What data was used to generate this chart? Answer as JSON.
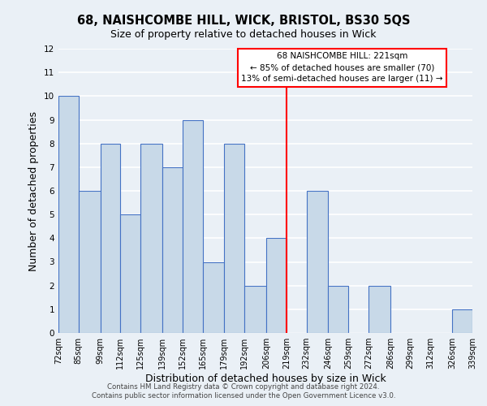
{
  "title": "68, NAISHCOMBE HILL, WICK, BRISTOL, BS30 5QS",
  "subtitle": "Size of property relative to detached houses in Wick",
  "xlabel": "Distribution of detached houses by size in Wick",
  "ylabel": "Number of detached properties",
  "bar_left_edges": [
    72,
    85,
    99,
    112,
    125,
    139,
    152,
    165,
    179,
    192,
    206,
    219,
    232,
    246,
    259,
    272,
    286,
    299,
    312,
    326
  ],
  "bar_widths": [
    13,
    14,
    13,
    13,
    14,
    13,
    13,
    14,
    13,
    14,
    13,
    13,
    14,
    13,
    13,
    14,
    13,
    13,
    14,
    13
  ],
  "bar_heights": [
    10,
    6,
    8,
    5,
    8,
    7,
    9,
    3,
    8,
    2,
    4,
    0,
    6,
    2,
    0,
    2,
    0,
    0,
    0,
    1
  ],
  "xlim_left": 72,
  "xlim_right": 339,
  "ylim": [
    0,
    12
  ],
  "yticks": [
    0,
    1,
    2,
    3,
    4,
    5,
    6,
    7,
    8,
    9,
    10,
    11,
    12
  ],
  "xtick_labels": [
    "72sqm",
    "85sqm",
    "99sqm",
    "112sqm",
    "125sqm",
    "139sqm",
    "152sqm",
    "165sqm",
    "179sqm",
    "192sqm",
    "206sqm",
    "219sqm",
    "232sqm",
    "246sqm",
    "259sqm",
    "272sqm",
    "286sqm",
    "299sqm",
    "312sqm",
    "326sqm",
    "339sqm"
  ],
  "xtick_positions": [
    72,
    85,
    99,
    112,
    125,
    139,
    152,
    165,
    179,
    192,
    206,
    219,
    232,
    246,
    259,
    272,
    286,
    299,
    312,
    326,
    339
  ],
  "bar_color": "#c8d9e8",
  "bar_edge_color": "#4472c4",
  "red_line_x": 219,
  "annotation_line1": "68 NAISHCOMBE HILL: 221sqm",
  "annotation_line2": "← 85% of detached houses are smaller (70)",
  "annotation_line3": "13% of semi-detached houses are larger (11) →",
  "background_color": "#eaf0f6",
  "grid_color": "#ffffff",
  "footer_line1": "Contains HM Land Registry data © Crown copyright and database right 2024.",
  "footer_line2": "Contains public sector information licensed under the Open Government Licence v3.0."
}
